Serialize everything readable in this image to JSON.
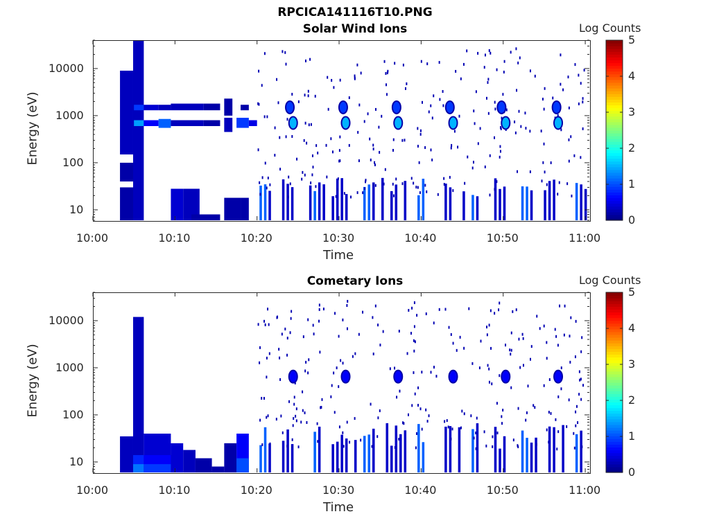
{
  "figure": {
    "file_title": "RPCICA141116T10.PNG"
  },
  "colorbar": {
    "label": "Log Counts",
    "ticks": [
      "0",
      "1",
      "2",
      "3",
      "4",
      "5"
    ],
    "range": [
      0,
      5
    ],
    "colormap": "jet"
  },
  "chart_data": [
    {
      "type": "heatmap",
      "title": "Solar Wind Ions",
      "xlabel": "Time",
      "ylabel": "Energy (eV)",
      "x_ticks": [
        "10:00",
        "10:10",
        "10:20",
        "10:30",
        "10:40",
        "10:50",
        "11:00"
      ],
      "y_ticks": [
        "10",
        "100",
        "1000",
        "10000"
      ],
      "y_scale": "log",
      "x_range_min": [
        0,
        60.5
      ],
      "y_range": [
        6,
        40000
      ],
      "color_scale": [
        0,
        5
      ],
      "cells": [
        [
          3.3,
          4.9,
          6,
          30,
          0.2
        ],
        [
          3.3,
          4.9,
          40,
          100,
          0.2
        ],
        [
          3.3,
          4.9,
          150,
          9000,
          0.3
        ],
        [
          4.9,
          6.2,
          6,
          40000,
          0.3
        ],
        [
          5.0,
          6.2,
          1300,
          1700,
          0.9
        ],
        [
          5.0,
          6.2,
          600,
          800,
          1.4
        ],
        [
          6.2,
          8.0,
          600,
          800,
          0.6
        ],
        [
          6.2,
          8.0,
          1300,
          1700,
          0.4
        ],
        [
          8.0,
          9.5,
          550,
          850,
          1.1
        ],
        [
          8.0,
          9.5,
          1300,
          1700,
          0.3
        ],
        [
          9.5,
          11.0,
          6,
          28,
          0.4
        ],
        [
          11.0,
          13.0,
          6,
          28,
          0.3
        ],
        [
          12.0,
          15.5,
          6,
          8,
          0.2
        ],
        [
          9.5,
          13.5,
          1300,
          1800,
          0.3
        ],
        [
          9.5,
          13.5,
          600,
          800,
          0.3
        ],
        [
          13.5,
          15.5,
          1300,
          1800,
          0.2
        ],
        [
          13.5,
          15.5,
          600,
          800,
          0.2
        ],
        [
          16.0,
          17.0,
          450,
          900,
          0.3
        ],
        [
          16.0,
          17.0,
          1000,
          2300,
          0.2
        ],
        [
          16.0,
          18.0,
          6,
          18,
          0.2
        ],
        [
          17.5,
          19.0,
          550,
          900,
          0.9
        ],
        [
          19.0,
          20.0,
          600,
          800,
          0.5
        ],
        [
          18.0,
          19.0,
          1300,
          1700,
          0.2
        ],
        [
          18.0,
          19.0,
          6,
          18,
          0.2
        ]
      ],
      "spots": [
        [
          24.4,
          700,
          1.5
        ],
        [
          30.8,
          700,
          1.5
        ],
        [
          37.2,
          700,
          1.5
        ],
        [
          43.9,
          700,
          1.5
        ],
        [
          50.3,
          700,
          1.5
        ],
        [
          56.7,
          700,
          1.5
        ],
        [
          24.0,
          1500,
          0.9
        ],
        [
          30.5,
          1500,
          0.9
        ],
        [
          37.0,
          1500,
          0.9
        ],
        [
          43.5,
          1500,
          0.9
        ],
        [
          49.8,
          1500,
          0.9
        ],
        [
          56.5,
          1500,
          0.9
        ]
      ]
    },
    {
      "type": "heatmap",
      "title": "Cometary Ions",
      "xlabel": "Time",
      "ylabel": "Energy (eV)",
      "x_ticks": [
        "10:00",
        "10:10",
        "10:20",
        "10:30",
        "10:40",
        "10:50",
        "11:00"
      ],
      "y_ticks": [
        "10",
        "100",
        "1000",
        "10000"
      ],
      "y_scale": "log",
      "x_range_min": [
        0,
        60.5
      ],
      "y_range": [
        6,
        40000
      ],
      "color_scale": [
        0,
        5
      ],
      "cells": [
        [
          3.3,
          4.9,
          6,
          35,
          0.3
        ],
        [
          4.9,
          6.2,
          6,
          12000,
          0.3
        ],
        [
          4.9,
          6.2,
          6,
          9,
          1.2
        ],
        [
          4.9,
          6.2,
          9,
          14,
          0.8
        ],
        [
          6.2,
          9.5,
          6,
          40,
          0.4
        ],
        [
          6.2,
          9.5,
          6,
          9,
          0.9
        ],
        [
          6.2,
          9.5,
          9,
          14,
          0.6
        ],
        [
          9.5,
          11.0,
          6,
          25,
          0.4
        ],
        [
          11.0,
          12.5,
          6,
          18,
          0.3
        ],
        [
          12.5,
          14.5,
          6,
          12,
          0.2
        ],
        [
          14.5,
          16.0,
          6,
          8,
          0.2
        ],
        [
          16.0,
          17.5,
          6,
          25,
          0.2
        ],
        [
          17.5,
          19.0,
          6,
          40,
          0.6
        ],
        [
          17.5,
          19.0,
          6,
          12,
          1.0
        ]
      ],
      "spots": [
        [
          24.4,
          650,
          0.6
        ],
        [
          30.8,
          650,
          0.6
        ],
        [
          37.2,
          650,
          0.6
        ],
        [
          43.9,
          650,
          0.6
        ],
        [
          50.3,
          650,
          0.6
        ],
        [
          56.7,
          650,
          0.6
        ]
      ]
    }
  ]
}
